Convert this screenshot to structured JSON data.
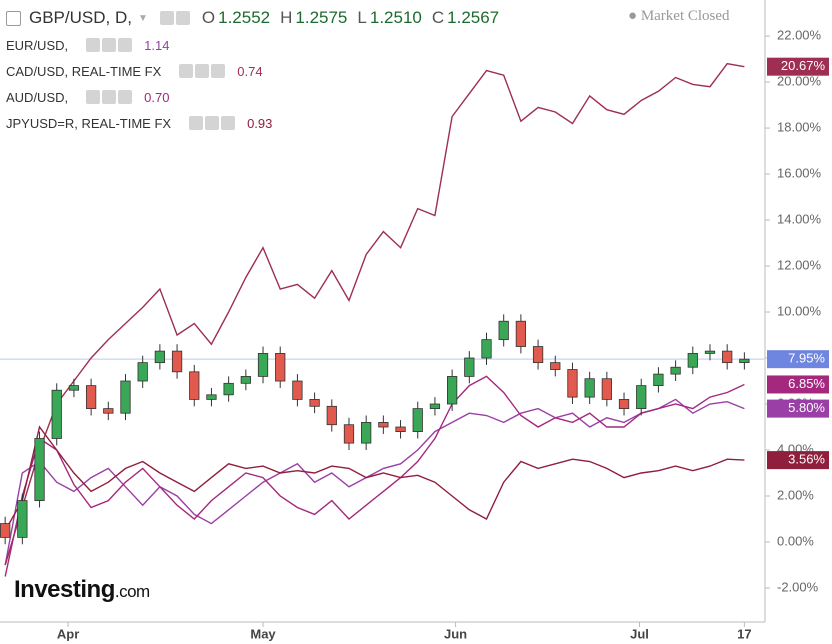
{
  "chart_data": {
    "type": "candlestick",
    "title": "GBP/USD, D,",
    "ohlc": [
      {
        "label": "O",
        "value": "1.2552"
      },
      {
        "label": "H",
        "value": "1.2575"
      },
      {
        "label": "L",
        "value": "1.2510"
      },
      {
        "label": "C",
        "value": "1.2567"
      }
    ],
    "status": "Market Closed",
    "logo": {
      "bold": "Investing",
      "suffix": ".com"
    },
    "x": [
      0,
      1,
      2,
      3,
      4,
      5,
      6,
      7,
      8,
      9,
      10,
      11,
      12,
      13,
      14,
      15,
      16,
      17,
      18,
      19,
      20,
      21,
      22,
      23,
      24,
      25,
      26,
      27,
      28,
      29,
      30,
      31,
      32,
      33,
      34,
      35,
      36,
      37,
      38,
      39,
      40,
      41,
      42,
      43
    ],
    "xlim": [
      -0.3,
      44.2
    ],
    "xticks": [
      {
        "value": 3.66,
        "label": "Apr"
      },
      {
        "value": 15,
        "label": "May"
      },
      {
        "value": 26.2,
        "label": "Jun"
      },
      {
        "value": 36.9,
        "label": "Jul"
      },
      {
        "value": 43,
        "label": "17"
      }
    ],
    "ylim": [
      -3.48,
      23.57
    ],
    "yticks": [
      {
        "value": -2,
        "label": "-2.00%"
      },
      {
        "value": 0,
        "label": "0.00%"
      },
      {
        "value": 2,
        "label": "2.00%"
      },
      {
        "value": 4,
        "label": "4.00%"
      },
      {
        "value": 6,
        "label": "6.00%"
      },
      {
        "value": 8,
        "label": "8.00%"
      },
      {
        "value": 10,
        "label": "10.00%"
      },
      {
        "value": 12,
        "label": "12.00%"
      },
      {
        "value": 14,
        "label": "14.00%"
      },
      {
        "value": 16,
        "label": "16.00%"
      },
      {
        "value": 18,
        "label": "18.00%"
      },
      {
        "value": 20,
        "label": "20.00%"
      },
      {
        "value": 22,
        "label": "22.00%"
      }
    ],
    "up_color": "#3aa757",
    "down_color": "#e25a4d",
    "open": [
      0.8,
      0.2,
      1.8,
      4.5,
      6.6,
      6.8,
      5.8,
      5.6,
      7.0,
      7.8,
      8.3,
      7.4,
      6.2,
      6.4,
      6.9,
      7.2,
      8.2,
      7.0,
      6.2,
      5.9,
      5.1,
      4.3,
      5.2,
      5.0,
      4.8,
      5.8,
      6.0,
      7.2,
      8.0,
      8.8,
      9.6,
      8.5,
      7.8,
      7.5,
      6.3,
      7.1,
      6.2,
      5.8,
      6.8,
      7.3,
      7.6,
      8.2,
      8.3,
      7.8
    ],
    "high": [
      1.1,
      2.1,
      4.8,
      6.9,
      7.1,
      7.1,
      6.1,
      7.3,
      8.1,
      8.6,
      8.6,
      7.7,
      6.7,
      7.2,
      7.5,
      8.5,
      8.5,
      7.3,
      6.5,
      6.2,
      5.4,
      5.5,
      5.5,
      5.3,
      6.1,
      6.3,
      7.5,
      8.3,
      9.1,
      9.9,
      9.9,
      8.8,
      8.1,
      7.8,
      7.4,
      7.4,
      6.5,
      7.1,
      7.6,
      7.9,
      8.5,
      8.6,
      8.6,
      8.25
    ],
    "low": [
      -0.1,
      -0.1,
      1.5,
      4.2,
      6.3,
      5.5,
      5.3,
      5.3,
      6.7,
      7.5,
      7.1,
      5.9,
      5.9,
      6.1,
      6.6,
      6.9,
      6.7,
      5.9,
      5.6,
      4.8,
      4.0,
      4.0,
      4.7,
      4.5,
      4.5,
      5.5,
      5.7,
      6.9,
      7.7,
      8.5,
      8.2,
      7.5,
      7.2,
      6.0,
      6.0,
      5.9,
      5.5,
      5.5,
      6.5,
      7.0,
      7.3,
      7.9,
      7.5,
      7.5
    ],
    "close": [
      0.2,
      1.8,
      4.5,
      6.6,
      6.8,
      5.8,
      5.6,
      7.0,
      7.8,
      8.3,
      7.4,
      6.2,
      6.4,
      6.9,
      7.2,
      8.2,
      7.0,
      6.2,
      5.9,
      5.1,
      4.3,
      5.2,
      5.0,
      4.8,
      5.8,
      6.0,
      7.2,
      8.0,
      8.8,
      9.6,
      8.5,
      7.8,
      7.5,
      6.3,
      7.1,
      6.2,
      5.8,
      6.8,
      7.3,
      7.6,
      8.2,
      8.3,
      7.8,
      7.95
    ],
    "current": {
      "value": 7.95,
      "label": "7.95%",
      "color": "#6f86e0",
      "line_color": "#b9c9f3"
    },
    "series": [
      {
        "name": "EUR/USD,",
        "last": "1.14",
        "color": "#9a3fa6",
        "end_label": "5.80%",
        "values": [
          -1.0,
          3.0,
          3.5,
          2.6,
          2.2,
          2.8,
          3.2,
          2.4,
          1.6,
          2.4,
          2.0,
          1.2,
          0.8,
          1.4,
          2.0,
          2.6,
          3.0,
          3.4,
          2.6,
          3.0,
          2.4,
          2.8,
          3.2,
          3.4,
          4.0,
          4.8,
          5.2,
          5.6,
          5.5,
          5.2,
          5.6,
          5.8,
          5.4,
          5.6,
          5.0,
          5.4,
          5.2,
          5.6,
          5.8,
          6.2,
          5.6,
          6.0,
          6.1,
          5.8
        ]
      },
      {
        "name": "CAD/USD, REAL-TIME FX",
        "last": "0.74",
        "color": "#9e2f52",
        "end_label": "20.67%",
        "values": [
          -1.0,
          1.5,
          4.0,
          6.0,
          7.0,
          8.0,
          8.8,
          9.5,
          10.2,
          11.0,
          9.0,
          9.5,
          8.6,
          10.0,
          11.5,
          12.8,
          11.0,
          11.2,
          10.6,
          11.8,
          10.5,
          12.5,
          13.5,
          12.8,
          14.5,
          14.2,
          18.5,
          19.5,
          20.5,
          20.3,
          18.3,
          18.9,
          18.7,
          18.2,
          19.4,
          18.8,
          18.6,
          19.2,
          19.6,
          20.2,
          19.9,
          19.8,
          20.8,
          20.67
        ]
      },
      {
        "name": "AUD/USD,",
        "last": "0.70",
        "color": "#a4287e",
        "end_label": "6.85%",
        "values": [
          -1.5,
          2.0,
          4.5,
          4.0,
          2.5,
          1.5,
          1.8,
          2.6,
          3.2,
          2.4,
          1.6,
          1.0,
          1.8,
          2.4,
          3.0,
          2.8,
          2.0,
          1.5,
          1.2,
          1.8,
          1.0,
          1.6,
          2.2,
          2.8,
          3.5,
          4.5,
          6.0,
          6.8,
          7.2,
          6.5,
          5.5,
          5.0,
          5.4,
          5.2,
          5.6,
          5.0,
          5.0,
          5.6,
          5.8,
          6.0,
          5.8,
          6.3,
          6.5,
          6.85
        ]
      },
      {
        "name": "JPYUSD=R, REAL-TIME FX",
        "last": "0.93",
        "color": "#8f1f3c",
        "end_label": "3.56%",
        "values": [
          0.5,
          1.8,
          5.0,
          4.0,
          3.0,
          2.2,
          2.6,
          3.2,
          3.5,
          3.0,
          2.6,
          2.2,
          2.8,
          3.4,
          3.2,
          3.3,
          3.0,
          3.1,
          3.0,
          3.3,
          3.2,
          2.8,
          3.0,
          2.8,
          2.9,
          2.6,
          2.0,
          1.4,
          1.0,
          2.6,
          3.5,
          3.2,
          3.4,
          3.6,
          3.5,
          3.2,
          2.8,
          3.0,
          3.1,
          3.3,
          3.1,
          3.3,
          3.6,
          3.56
        ]
      }
    ]
  }
}
